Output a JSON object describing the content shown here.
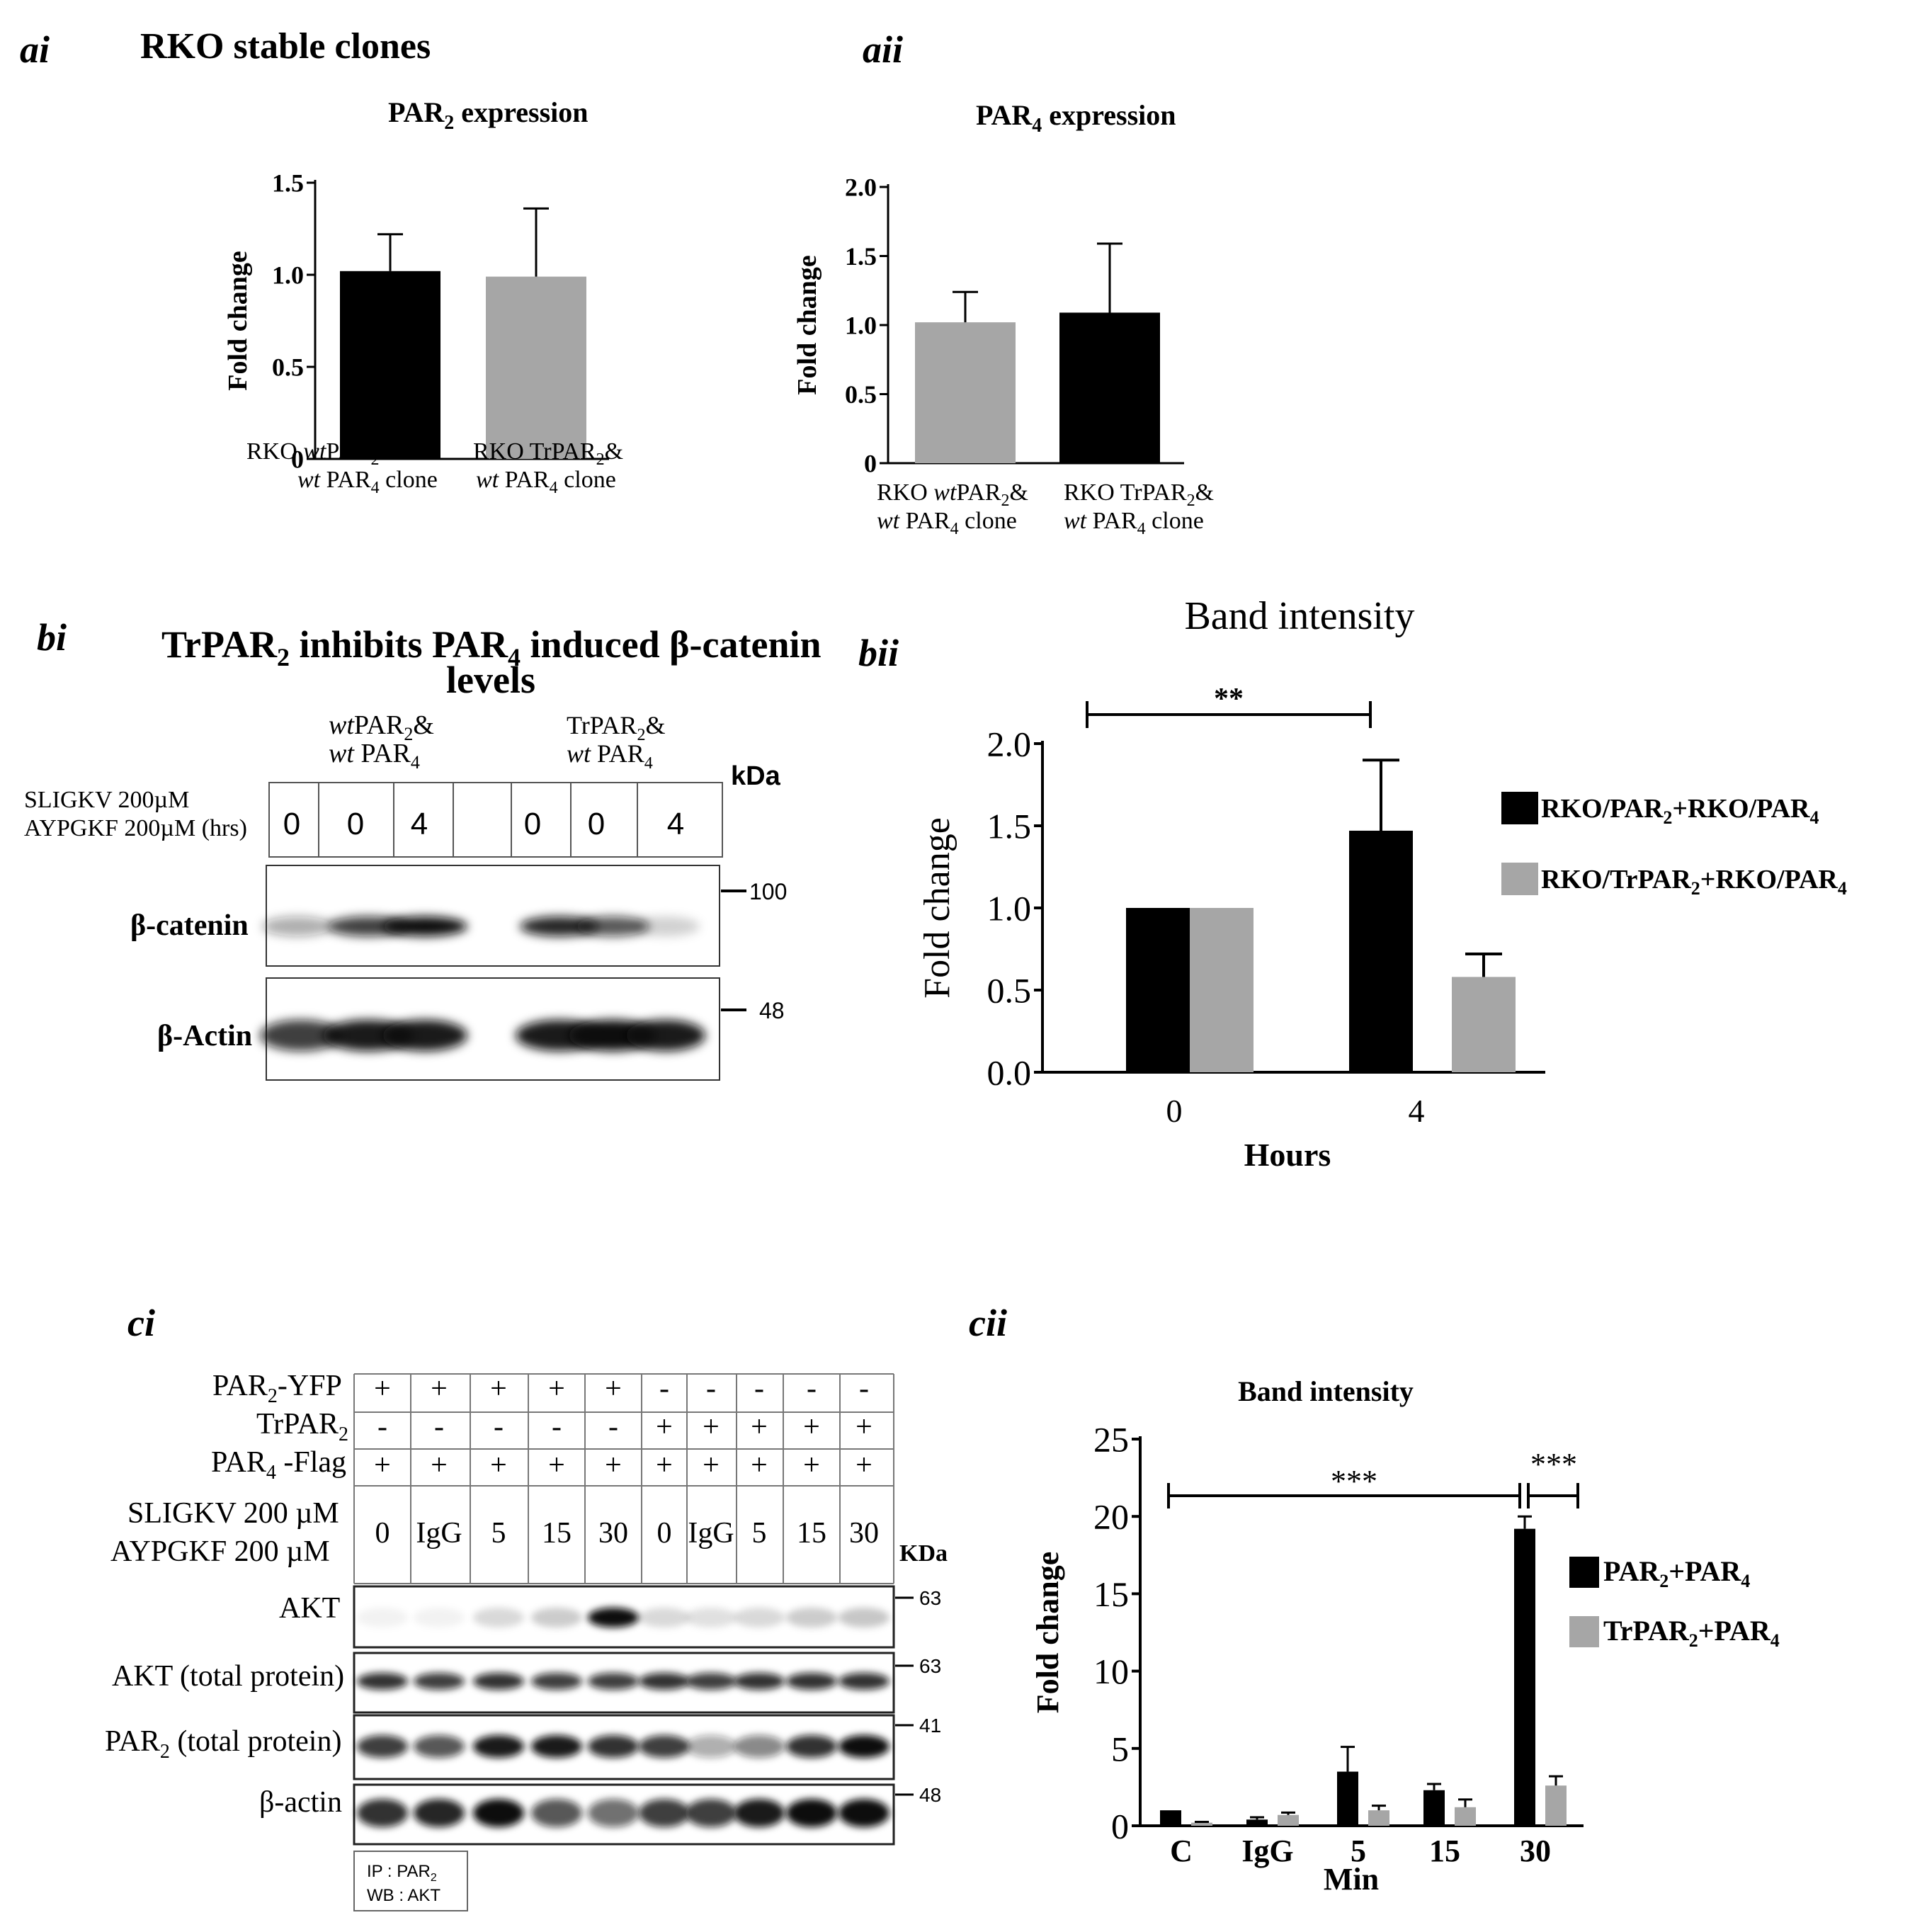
{
  "panels": {
    "ai": {
      "letter": "ai",
      "heading": "RKO stable clones",
      "chart_title": "PAR2 expression",
      "ylabel": "Fold change",
      "category_lines": [
        [
          "RKO wtPAR2&",
          "wt PAR4 clone"
        ],
        [
          "RKO TrPAR2&",
          "wt PAR4 clone"
        ]
      ]
    },
    "aii": {
      "letter": "aii",
      "chart_title": "PAR4 expression",
      "ylabel": "Fold change",
      "category_lines": [
        [
          "RKO wtPAR2&",
          "wt PAR4 clone"
        ],
        [
          "RKO TrPAR2&",
          "wt PAR4 clone"
        ]
      ]
    },
    "bi": {
      "letter": "bi",
      "title_line1": "TrPAR2 inhibits PAR4 induced β-catenin",
      "title_line2": "levels",
      "group1": [
        "wtPAR2&",
        "wt PAR4"
      ],
      "group2": [
        "TrPAR2&",
        "wt PAR4"
      ],
      "kda": "kDa",
      "treat1": "SLIGKV  200µM",
      "treat2": "AYPGKF 200µM (hrs)",
      "lanes": [
        "0",
        "0",
        "4",
        "",
        "0",
        "0",
        "4"
      ],
      "blot_rows": [
        "β-catenin",
        "β-Actin"
      ],
      "markers": [
        "100",
        "48"
      ]
    },
    "bii": {
      "letter": "bii",
      "significance": "**",
      "legend": [
        "RKO/PAR2+RKO/PAR4",
        "RKO/TrPAR2+RKO/PAR4"
      ]
    },
    "ci": {
      "letter": "ci",
      "row_labels": [
        "PAR2-YFP",
        "TrPAR2",
        "PAR4 -Flag"
      ],
      "row_values": [
        [
          "+",
          "+",
          "+",
          "+",
          "+",
          "-",
          "-",
          "-",
          "-",
          "-"
        ],
        [
          "-",
          "-",
          "-",
          "-",
          "-",
          "+",
          "+",
          "+",
          "+",
          "+"
        ],
        [
          "+",
          "+",
          "+",
          "+",
          "+",
          "+",
          "+",
          "+",
          "+",
          "+"
        ]
      ],
      "treat1": "SLIGKV  200 µM",
      "treat2": "AYPGKF  200  µM",
      "lanes": [
        "0",
        "IgG",
        "5",
        "15",
        "30",
        "0",
        "IgG",
        "5",
        "15",
        "30"
      ],
      "kda": "KDa",
      "blot_rows": [
        "AKT",
        "AKT  (total protein)",
        "PAR2  (total protein)",
        "β-actin"
      ],
      "markers": [
        "63",
        "63",
        "41",
        "48"
      ],
      "ip_box": [
        "IP :  PAR2",
        "WB : AKT"
      ]
    },
    "cii": {
      "letter": "cii",
      "significance_left": "***",
      "significance_right": "***",
      "legend": [
        "PAR2+PAR4",
        "TrPAR2+PAR4"
      ]
    }
  },
  "colors": {
    "black_bar": "#000000",
    "gray_bar": "#a6a6a6",
    "blot_band": "#111111"
  },
  "chart_data": [
    {
      "id": "ai",
      "type": "bar",
      "title": "PAR2 expression",
      "xlabel": "",
      "ylabel": "Fold change",
      "categories": [
        "RKO wtPAR2& wt PAR4 clone",
        "RKO TrPAR2& wt PAR4 clone"
      ],
      "values": [
        1.02,
        0.99
      ],
      "errors": [
        0.2,
        0.37
      ],
      "colors": [
        "#000000",
        "#a6a6a6"
      ],
      "ylim": [
        0,
        1.5
      ],
      "yticks": [
        "0",
        "0.5",
        "1.0",
        "1.5"
      ],
      "ytick_values": [
        0,
        0.5,
        1.0,
        1.5
      ]
    },
    {
      "id": "aii",
      "type": "bar",
      "title": "PAR4 expression",
      "xlabel": "",
      "ylabel": "Fold change",
      "categories": [
        "RKO wtPAR2& wt PAR4 clone",
        "RKO TrPAR2& wt PAR4 clone"
      ],
      "values": [
        1.02,
        1.09
      ],
      "errors": [
        0.22,
        0.5
      ],
      "colors": [
        "#a6a6a6",
        "#000000"
      ],
      "ylim": [
        0,
        2.0
      ],
      "yticks": [
        "0",
        "0.5",
        "1.0",
        "1.5",
        "2.0"
      ],
      "ytick_values": [
        0,
        0.5,
        1.0,
        1.5,
        2.0
      ]
    },
    {
      "id": "bii",
      "type": "bar",
      "title": "Band intensity",
      "xlabel": "Hours",
      "ylabel": "Fold change",
      "categories": [
        "0",
        "4"
      ],
      "series": [
        {
          "name": "RKO/PAR2+RKO/PAR4",
          "values": [
            1.0,
            1.47
          ],
          "errors": [
            0,
            0.43
          ]
        },
        {
          "name": "RKO/TrPAR2+RKO/PAR4",
          "values": [
            1.0,
            0.58
          ],
          "errors": [
            0,
            0.14
          ]
        }
      ],
      "ylim": [
        0,
        2.0
      ],
      "yticks": [
        "0.0",
        "0.5",
        "1.0",
        "1.5",
        "2.0"
      ],
      "ytick_values": [
        0,
        0.5,
        1.0,
        1.5,
        2.0
      ],
      "legend": "right",
      "annotations": [
        "**"
      ]
    },
    {
      "id": "cii",
      "type": "bar",
      "title": "Band intensity",
      "xlabel": "Min",
      "ylabel": "Fold change",
      "categories": [
        "C",
        "IgG",
        "5",
        "15",
        "30"
      ],
      "series": [
        {
          "name": "PAR2+PAR4",
          "values": [
            1.0,
            0.4,
            3.5,
            2.3,
            19.2
          ],
          "errors": [
            0,
            0.15,
            1.6,
            0.4,
            0.8
          ]
        },
        {
          "name": "TrPAR2+PAR4",
          "values": [
            0.2,
            0.7,
            1.0,
            1.2,
            2.6
          ],
          "errors": [
            0.05,
            0.15,
            0.3,
            0.5,
            0.6
          ]
        }
      ],
      "ylim": [
        0,
        25
      ],
      "yticks": [
        "0",
        "5",
        "10",
        "15",
        "20",
        "25"
      ],
      "ytick_values": [
        0,
        5,
        10,
        15,
        20,
        25
      ],
      "legend": "right",
      "annotations": [
        "***",
        "***"
      ]
    }
  ]
}
